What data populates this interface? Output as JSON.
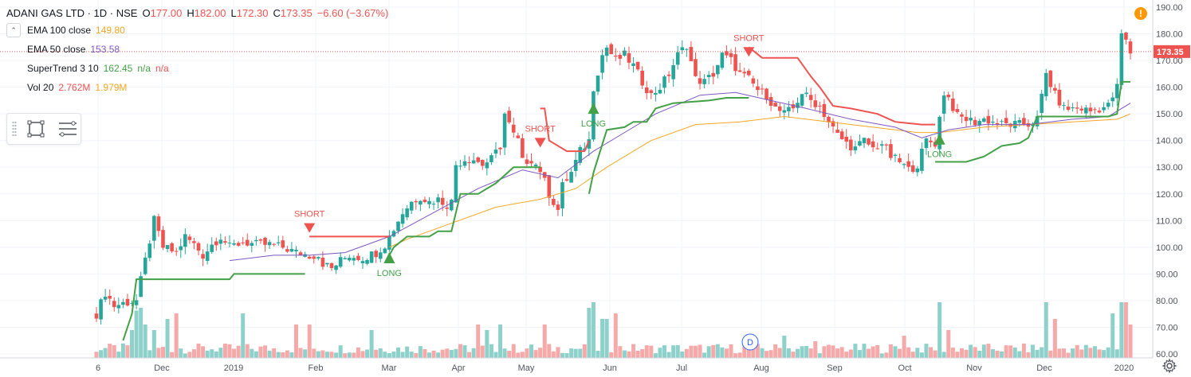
{
  "header": {
    "symbol": "ADANI GAS LTD · 1D · NSE",
    "ohlc": [
      {
        "label": "O",
        "value": "177.00"
      },
      {
        "label": "H",
        "value": "182.00"
      },
      {
        "label": "L",
        "value": "172.30"
      },
      {
        "label": "C",
        "value": "173.35"
      }
    ],
    "change": "−6.60 (−3.67%)"
  },
  "indicators": [
    {
      "name": "EMA 100 close",
      "values": [
        {
          "text": "149.80",
          "color": "#f5a623"
        }
      ]
    },
    {
      "name": "EMA 50 close",
      "values": [
        {
          "text": "153.58",
          "color": "#7e57c2"
        }
      ]
    },
    {
      "name": "SuperTrend 3 10",
      "values": [
        {
          "text": "162.45",
          "color": "#43a047"
        },
        {
          "text": "n/a",
          "color": "#43a047"
        },
        {
          "text": "n/a",
          "color": "#ef5350"
        }
      ]
    },
    {
      "name": "Vol 20",
      "values": [
        {
          "text": "2.762M",
          "color": "#ef5350"
        },
        {
          "text": "1.979M",
          "color": "#f5a623"
        }
      ]
    }
  ],
  "toolbar": {
    "rect_icon": "rectangle-tool-icon",
    "lines_icon": "horizontal-lines-icon"
  },
  "warning": "!",
  "colors": {
    "up": "#26a69a",
    "down": "#ef5350",
    "ema100": "#f5a623",
    "ema50": "#7e57c2",
    "st_up": "#43a047",
    "st_down": "#ef5350",
    "vol_up": "#8ed1cb",
    "vol_down": "#f5a9a8"
  },
  "chart_data": {
    "type": "candlestick",
    "symbol": "ADANI GAS LTD",
    "interval": "1D",
    "exchange": "NSE",
    "last_price": 173.35,
    "last_price_label": "173.35",
    "ylim": [
      60,
      190
    ],
    "y_ticks": [
      "190.00",
      "180.00",
      "170.00",
      "160.00",
      "150.00",
      "140.00",
      "130.00",
      "120.00",
      "110.00",
      "100.00",
      "90.00",
      "80.00",
      "70.00",
      "60.00"
    ],
    "x_ticks": [
      "6",
      "Dec",
      "2019",
      "Feb",
      "Mar",
      "Apr",
      "May",
      "Jun",
      "Jul",
      "Aug",
      "Sep",
      "Oct",
      "Nov",
      "Dec",
      "2020"
    ],
    "close_path": [
      [
        0,
        75
      ],
      [
        2,
        83
      ],
      [
        4,
        78
      ],
      [
        6,
        79
      ],
      [
        9,
        80
      ],
      [
        11,
        95
      ],
      [
        13,
        110
      ],
      [
        15,
        100
      ],
      [
        18,
        98
      ],
      [
        20,
        104
      ],
      [
        22,
        101
      ],
      [
        24,
        97
      ],
      [
        26,
        101
      ],
      [
        28,
        104
      ],
      [
        30,
        100
      ],
      [
        33,
        102
      ],
      [
        36,
        101
      ],
      [
        39,
        101
      ],
      [
        42,
        100
      ],
      [
        45,
        98
      ],
      [
        48,
        97
      ],
      [
        50,
        97
      ],
      [
        51,
        94
      ],
      [
        53,
        92
      ],
      [
        55,
        95
      ],
      [
        57,
        97
      ],
      [
        60,
        96
      ],
      [
        63,
        98
      ],
      [
        65,
        101
      ],
      [
        67,
        107
      ],
      [
        69,
        113
      ],
      [
        71,
        117
      ],
      [
        73,
        119
      ],
      [
        75,
        117
      ],
      [
        77,
        118
      ],
      [
        79,
        116
      ],
      [
        80,
        117
      ],
      [
        81,
        131
      ],
      [
        83,
        133
      ],
      [
        85,
        133
      ],
      [
        87,
        131
      ],
      [
        89,
        133
      ],
      [
        91,
        138
      ],
      [
        92,
        150
      ],
      [
        94,
        142
      ],
      [
        95,
        140
      ],
      [
        96,
        132
      ],
      [
        98,
        133
      ],
      [
        100,
        129
      ],
      [
        102,
        120
      ],
      [
        104,
        114
      ],
      [
        105,
        123
      ],
      [
        107,
        128
      ],
      [
        108,
        132
      ],
      [
        109,
        136
      ],
      [
        111,
        140
      ],
      [
        112,
        160
      ],
      [
        114,
        172
      ],
      [
        115,
        175
      ],
      [
        117,
        170
      ],
      [
        119,
        172
      ],
      [
        121,
        168
      ],
      [
        123,
        162
      ],
      [
        125,
        157
      ],
      [
        127,
        160
      ],
      [
        129,
        165
      ],
      [
        131,
        172
      ],
      [
        133,
        176
      ],
      [
        135,
        163
      ],
      [
        137,
        162
      ],
      [
        139,
        165
      ],
      [
        141,
        172
      ],
      [
        143,
        170
      ],
      [
        145,
        165
      ],
      [
        147,
        163
      ],
      [
        149,
        159
      ],
      [
        151,
        157
      ],
      [
        153,
        152
      ],
      [
        155,
        150
      ],
      [
        157,
        152
      ],
      [
        159,
        158
      ],
      [
        161,
        155
      ],
      [
        163,
        153
      ],
      [
        165,
        147
      ],
      [
        167,
        142
      ],
      [
        169,
        139
      ],
      [
        171,
        137
      ],
      [
        173,
        140
      ],
      [
        175,
        137
      ],
      [
        177,
        139
      ],
      [
        179,
        134
      ],
      [
        181,
        132
      ],
      [
        183,
        129
      ],
      [
        185,
        131
      ],
      [
        187,
        140
      ],
      [
        189,
        139
      ],
      [
        191,
        158
      ],
      [
        192,
        156
      ],
      [
        194,
        149
      ],
      [
        196,
        148
      ],
      [
        198,
        147
      ],
      [
        200,
        148
      ],
      [
        202,
        147
      ],
      [
        204,
        146
      ],
      [
        206,
        146
      ],
      [
        208,
        146
      ],
      [
        210,
        146
      ],
      [
        212,
        148
      ],
      [
        214,
        165
      ],
      [
        216,
        157
      ],
      [
        218,
        152
      ],
      [
        220,
        152
      ],
      [
        222,
        152
      ],
      [
        224,
        151
      ],
      [
        226,
        152
      ],
      [
        228,
        153
      ],
      [
        230,
        160
      ],
      [
        231,
        180
      ],
      [
        232,
        177
      ],
      [
        233,
        173
      ]
    ],
    "ema100": [
      [
        66,
        100
      ],
      [
        70,
        103
      ],
      [
        80,
        109
      ],
      [
        90,
        115
      ],
      [
        100,
        118
      ],
      [
        108,
        122
      ],
      [
        115,
        130
      ],
      [
        125,
        140
      ],
      [
        135,
        146
      ],
      [
        145,
        147
      ],
      [
        155,
        149
      ],
      [
        165,
        147
      ],
      [
        175,
        145
      ],
      [
        185,
        143
      ],
      [
        190,
        143
      ],
      [
        200,
        145
      ],
      [
        210,
        146
      ],
      [
        220,
        147
      ],
      [
        230,
        148
      ],
      [
        233,
        150
      ]
    ],
    "ema50": [
      [
        30,
        95
      ],
      [
        40,
        97
      ],
      [
        48,
        97
      ],
      [
        56,
        98
      ],
      [
        66,
        104
      ],
      [
        76,
        113
      ],
      [
        86,
        122
      ],
      [
        96,
        129
      ],
      [
        104,
        126
      ],
      [
        112,
        136
      ],
      [
        118,
        142
      ],
      [
        126,
        150
      ],
      [
        136,
        157
      ],
      [
        144,
        158
      ],
      [
        152,
        155
      ],
      [
        160,
        152
      ],
      [
        170,
        148
      ],
      [
        180,
        145
      ],
      [
        186,
        141
      ],
      [
        192,
        144
      ],
      [
        200,
        146
      ],
      [
        210,
        146
      ],
      [
        220,
        148
      ],
      [
        228,
        149
      ],
      [
        233,
        154
      ]
    ],
    "supertrend": [
      {
        "trend": "long",
        "points": [
          [
            6,
            65
          ],
          [
            8,
            75
          ],
          [
            9,
            88
          ],
          [
            10,
            88
          ],
          [
            20,
            88
          ],
          [
            30,
            88
          ],
          [
            31,
            90
          ],
          [
            40,
            90
          ],
          [
            47,
            90
          ]
        ]
      },
      {
        "trend": "short",
        "points": [
          [
            48,
            104
          ],
          [
            50,
            104
          ],
          [
            60,
            104
          ],
          [
            66,
            104
          ]
        ]
      },
      {
        "trend": "long",
        "points": [
          [
            66,
            97
          ],
          [
            67,
            100
          ],
          [
            70,
            104
          ],
          [
            75,
            104
          ],
          [
            77,
            106
          ],
          [
            80,
            106
          ],
          [
            82,
            120
          ],
          [
            86,
            120
          ],
          [
            90,
            124
          ],
          [
            94,
            130
          ],
          [
            97,
            130
          ],
          [
            99,
            130
          ],
          [
            100,
            130
          ]
        ]
      },
      {
        "trend": "short",
        "points": [
          [
            100,
            152
          ],
          [
            101,
            152
          ],
          [
            102,
            140
          ],
          [
            106,
            136
          ],
          [
            110,
            136
          ],
          [
            111,
            140
          ]
        ]
      },
      {
        "trend": "long",
        "points": [
          [
            111,
            120
          ],
          [
            112,
            128
          ],
          [
            115,
            144
          ],
          [
            119,
            145
          ],
          [
            121,
            147
          ],
          [
            124,
            147
          ],
          [
            126,
            152
          ],
          [
            130,
            154
          ],
          [
            138,
            155
          ],
          [
            142,
            156
          ],
          [
            147,
            156
          ]
        ]
      },
      {
        "trend": "short",
        "points": [
          [
            147,
            175
          ],
          [
            150,
            171
          ],
          [
            158,
            171
          ],
          [
            161,
            164
          ],
          [
            163,
            160
          ],
          [
            166,
            153
          ],
          [
            170,
            152
          ],
          [
            176,
            150
          ],
          [
            180,
            147
          ],
          [
            186,
            146
          ],
          [
            189,
            146
          ]
        ]
      },
      {
        "trend": "long",
        "points": [
          [
            189,
            132
          ],
          [
            190,
            132
          ],
          [
            194,
            132
          ],
          [
            196,
            132
          ],
          [
            200,
            134
          ],
          [
            204,
            138
          ],
          [
            208,
            139
          ],
          [
            210,
            141
          ],
          [
            212,
            149
          ],
          [
            217,
            149
          ],
          [
            222,
            149
          ],
          [
            228,
            149
          ],
          [
            230,
            150
          ],
          [
            231,
            162
          ],
          [
            233,
            162
          ]
        ]
      }
    ],
    "signals": [
      {
        "type": "SHORT",
        "bar": 48
      },
      {
        "type": "LONG",
        "bar": 66
      },
      {
        "type": "SHORT",
        "bar": 100
      },
      {
        "type": "LONG",
        "bar": 112
      },
      {
        "type": "SHORT",
        "bar": 147
      },
      {
        "type": "LONG",
        "bar": 190
      }
    ],
    "volume_spikes": [
      [
        8,
        0.5
      ],
      [
        9,
        0.85
      ],
      [
        10,
        0.9
      ],
      [
        11,
        0.6
      ],
      [
        13,
        0.5
      ],
      [
        16,
        0.7
      ],
      [
        18,
        0.8
      ],
      [
        33,
        0.8
      ],
      [
        45,
        0.6
      ],
      [
        48,
        0.6
      ],
      [
        62,
        0.5
      ],
      [
        86,
        0.6
      ],
      [
        88,
        0.5
      ],
      [
        91,
        0.6
      ],
      [
        101,
        0.6
      ],
      [
        111,
        0.9
      ],
      [
        112,
        1.0
      ],
      [
        114,
        0.7
      ],
      [
        115,
        0.7
      ],
      [
        117,
        0.8
      ],
      [
        155,
        0.4
      ],
      [
        162,
        0.3
      ],
      [
        182,
        0.4
      ],
      [
        190,
        1.0
      ],
      [
        192,
        0.5
      ],
      [
        214,
        1.0
      ],
      [
        216,
        0.7
      ],
      [
        229,
        0.8
      ],
      [
        231,
        1.0
      ],
      [
        232,
        1.0
      ],
      [
        233,
        0.6
      ]
    ],
    "markers": [
      {
        "label": "D",
        "bar": 145
      }
    ]
  }
}
